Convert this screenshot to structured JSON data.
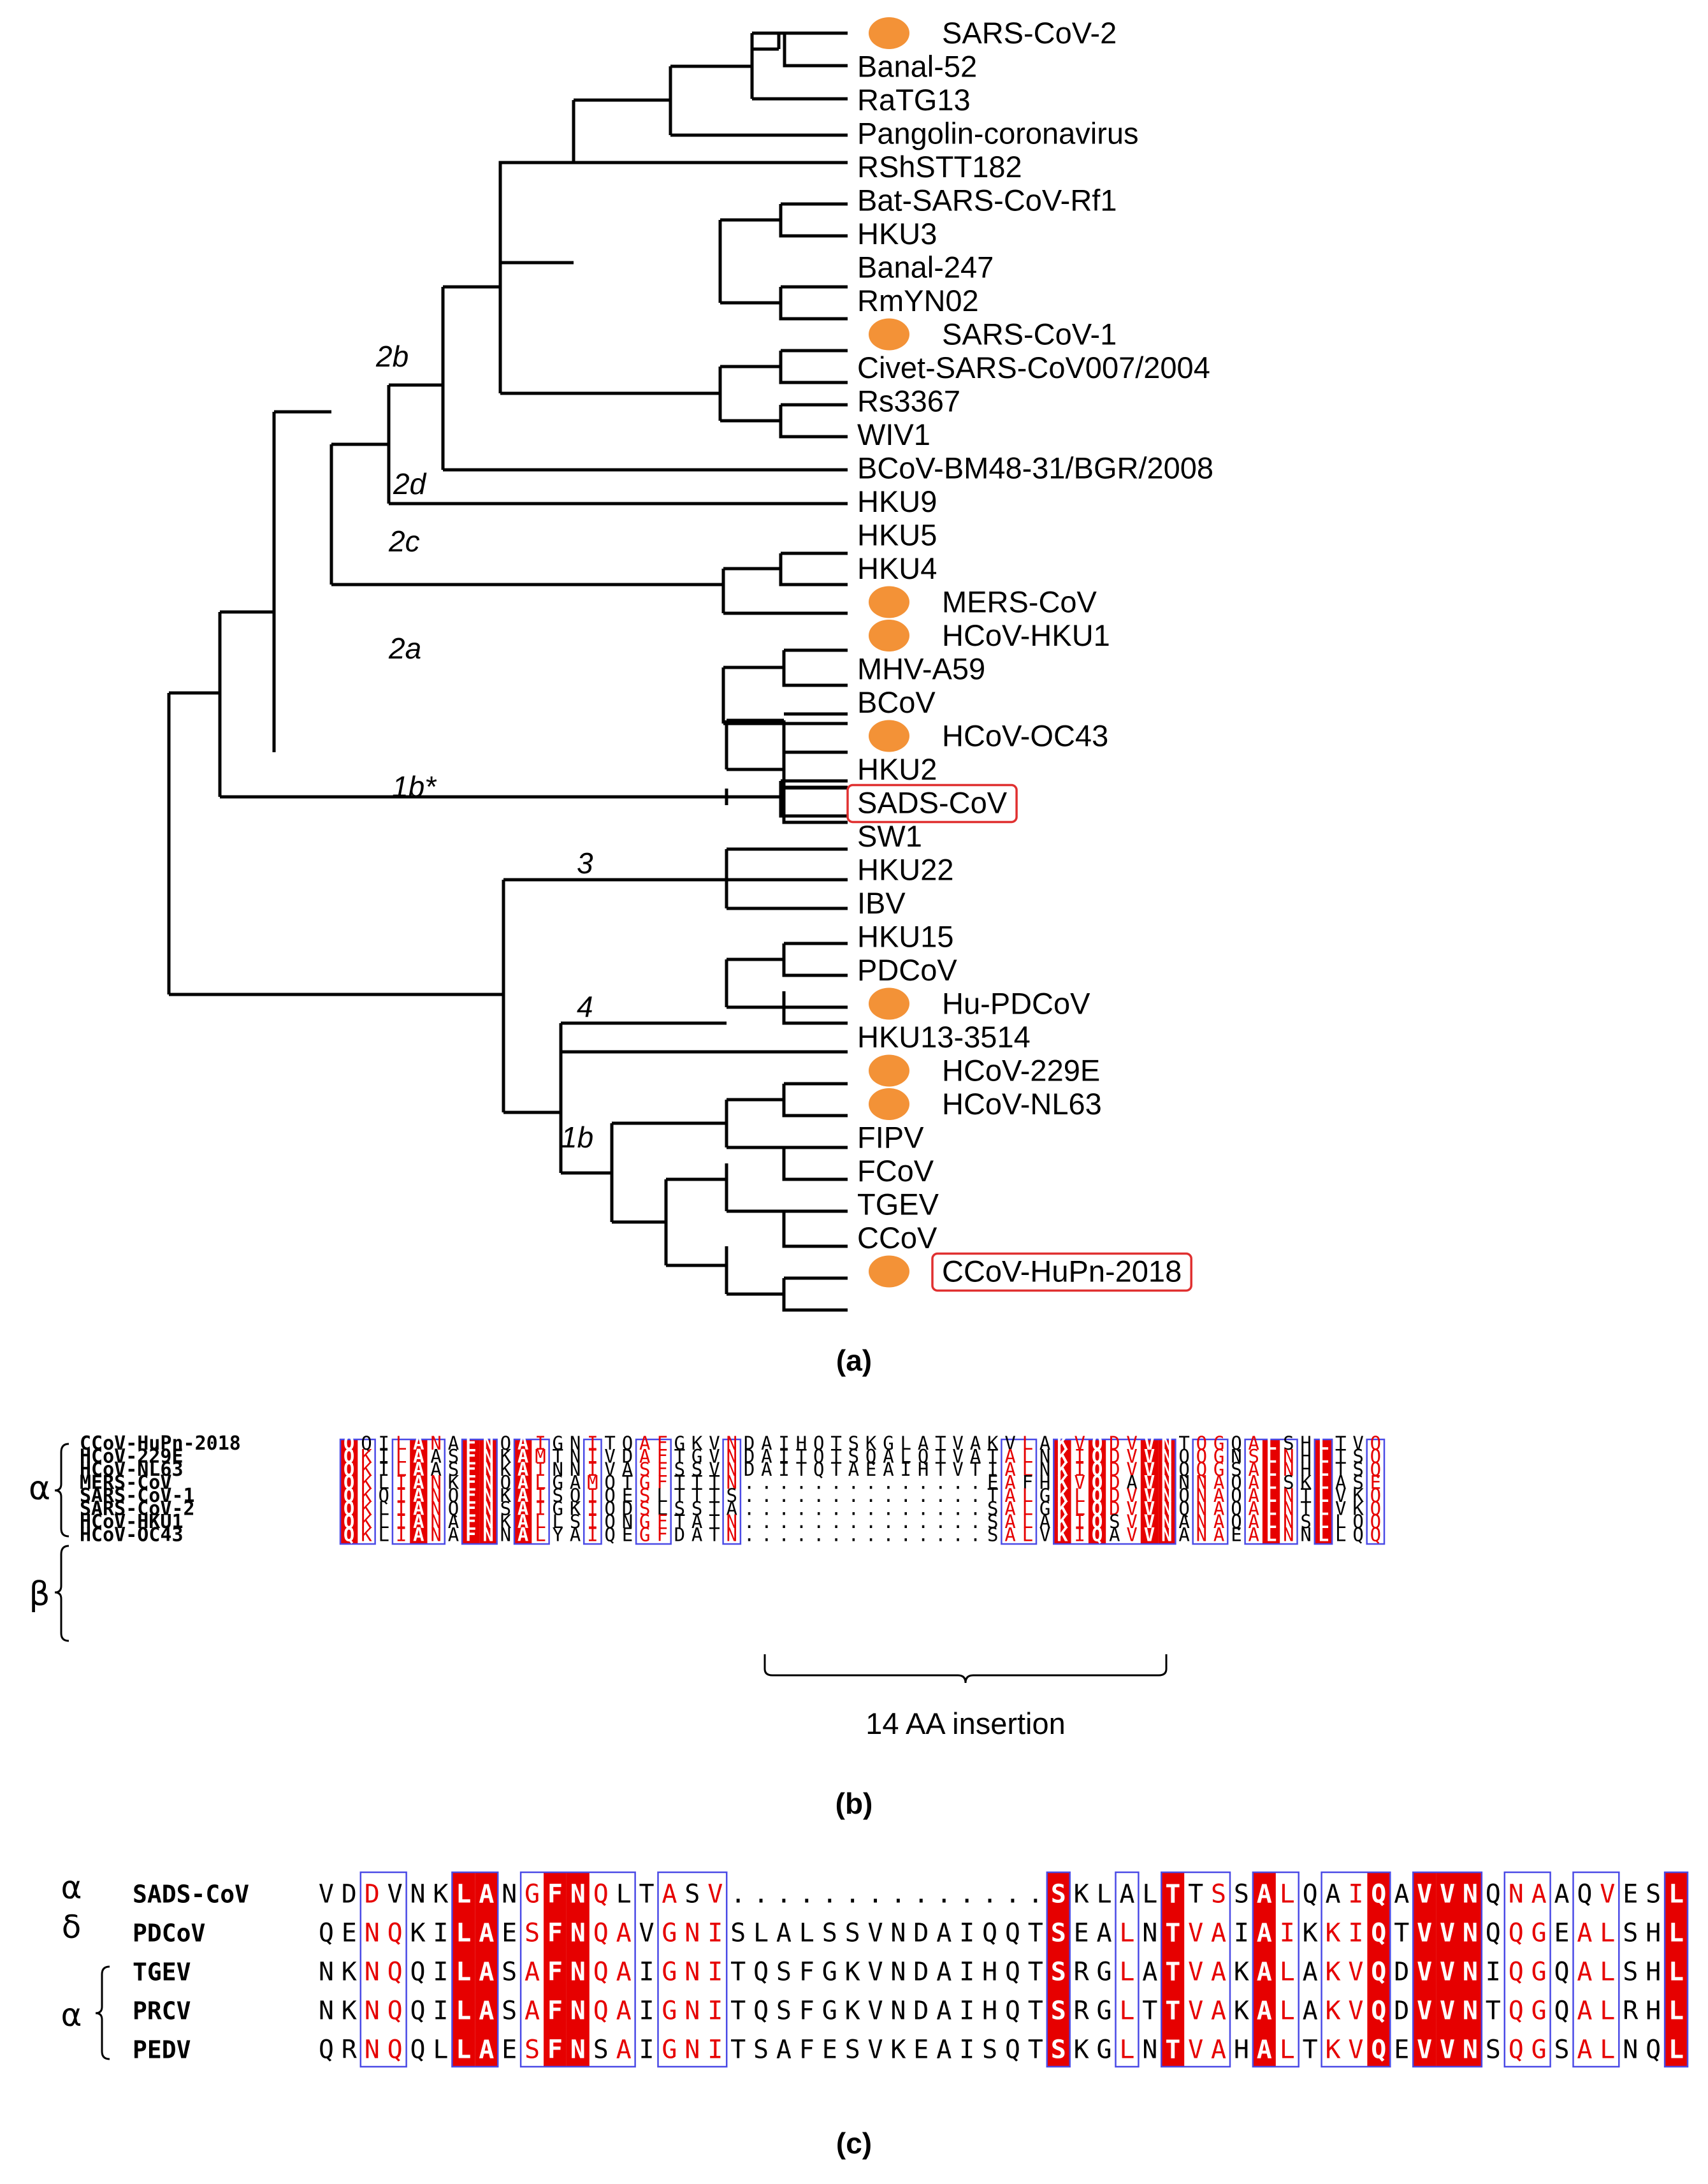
{
  "panel_a": {
    "label": "(a)",
    "tips": [
      "SARS-CoV-2",
      "Banal-52",
      "RaTG13",
      "Pangolin-coronavirus",
      "RShSTT182",
      "Bat-SARS-CoV-Rf1",
      "HKU3",
      "Banal-247",
      "RmYN02",
      "SARS-CoV-1",
      "Civet-SARS-CoV007/2004",
      "Rs3367",
      "WIV1",
      "BCoV-BM48-31/BGR/2008",
      "HKU9",
      "HKU5",
      "HKU4",
      "MERS-CoV",
      "HCoV-HKU1",
      "MHV-A59",
      "BCoV",
      "HCoV-OC43",
      "HKU2",
      "SADS-CoV",
      "SW1",
      "HKU22",
      "IBV",
      "HKU15",
      "PDCoV",
      "Hu-PDCoV",
      "HKU13-3514",
      "HCoV-229E",
      "HCoV-NL63",
      "FIPV",
      "FCoV",
      "TGEV",
      "CCoV",
      "CCoV-HuPn-2018"
    ],
    "human_marked": [
      "SARS-CoV-2",
      "SARS-CoV-1",
      "MERS-CoV",
      "HCoV-HKU1",
      "HCoV-OC43",
      "Hu-PDCoV",
      "HCoV-229E",
      "HCoV-NL63",
      "CCoV-HuPn-2018"
    ],
    "boxed": [
      "SADS-CoV",
      "CCoV-HuPn-2018"
    ],
    "clades": [
      "2b",
      "2d",
      "2c",
      "2a",
      "1b*",
      "3",
      "4",
      "1b"
    ],
    "marker_color": "#F39237",
    "box_color": "#E03030"
  },
  "panel_b": {
    "label": "(b)",
    "groups": [
      "α",
      "β"
    ],
    "names": [
      "CCoV-HuPn-2018",
      "HCoV-229E",
      "HCoV-NL63",
      "MERS-CoV",
      "SARS-CoV-1",
      "SARS-CoV-2",
      "HCoV-HKU1",
      "HCoV-OC43"
    ],
    "sequences": [
      "QQILANAFNQAIGNITQAFGKVNDAIHQTSKGLATVAKVLAKVQDVVNTQGQALSHLTVQ",
      "QKILAASFNKAMTNIVDAFTGVNDAITQTSQALQTVATALNKIQDVVNQQGNSLNHLTSQ",
      "QKILAASFNKAINNIVASFSSVNDAITQTAEAIHTVTIALNKIQDVVNQQGSALNHLTSQ",
      "QKLIANKFNQALGAMQTGFTTTN..............EAFHKVQDAVNNNAQALSKLASE",
      "QKQIANQFNKAISQIQESLTTTS..............TALGKLQDVVNQNAQALNTLVKQ",
      "QKLIANQFNSAIGKIQDSLSSTA..............SALGKLQDVVNQNAQALNTLVKQ",
      "QKLIANAFNKALLSIQNGFTATN..............SALAKIQSVVNANAQALNSLLQQ",
      "QKLIANAFNNALYAIQEGFDATN..............SALVKIQAVVNANAEALNNLLQQ"
    ],
    "insertion_label": "14 AA insertion"
  },
  "panel_c": {
    "label": "(c)",
    "groups": [
      "α",
      "δ",
      "α"
    ],
    "names": [
      "SADS-CoV",
      "PDCoV",
      "TGEV",
      "PRCV",
      "PEDV"
    ],
    "sequences": [
      "VDDVNKLANGFNQLTASV..............SKLALTTSSALQAIQAVVNQNAAQVESL",
      "QENQKILAESFNQAVGNISLALSSVNDAIQQTSEALNTVAIAIKKIQTVVNQQGEALSHL",
      "NKNQQILASAFNQAIGNITQSFGKVNDAIHQTSRGLATVAKALAKVQDVVNIQGQALSHL",
      "NKNQQILASAFNQAIGNITQSFGKVNDAIHQTSRGLTTVAKALAKVQDVVNTQGQALRHL",
      "QRNQQLLAESFNSAIGNITSAFESVKEAISQTSKGLNTVAHALTKVQEVVNSQGSALNQL"
    ]
  },
  "colors": {
    "conserved_bg": "#E60000",
    "similar_text": "#E60000",
    "frame": "#4A4AE6",
    "normal_text": "#000000"
  }
}
